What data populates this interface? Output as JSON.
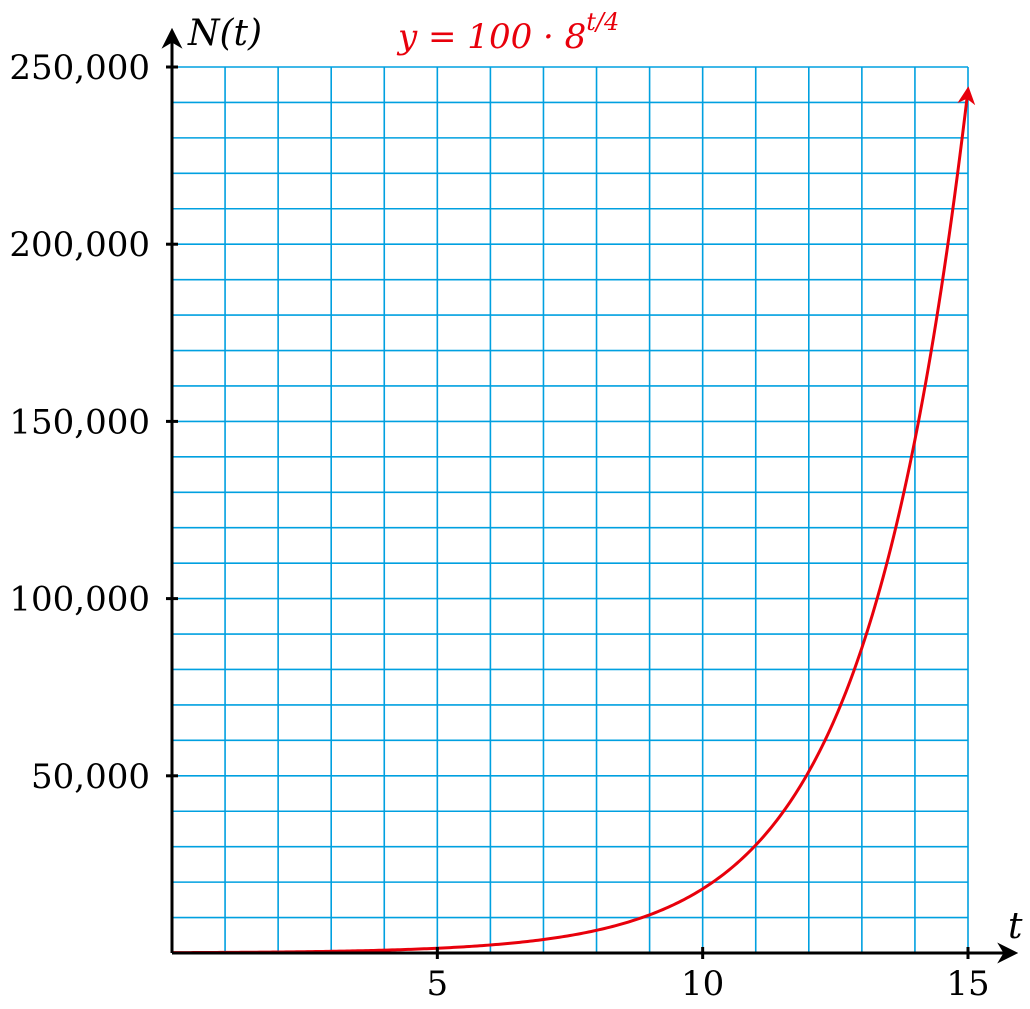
{
  "chart_data": {
    "type": "line",
    "title": "",
    "xlabel": "t",
    "ylabel": "N(t)",
    "xlim": [
      0,
      15
    ],
    "ylim": [
      0,
      250000
    ],
    "grid": true,
    "grid_x_step": 1,
    "grid_y_step": 10000,
    "x_ticks": [
      5,
      10,
      15
    ],
    "x_tick_labels": [
      "5",
      "10",
      "15"
    ],
    "y_ticks": [
      50000,
      100000,
      150000,
      200000,
      250000
    ],
    "y_tick_labels": [
      "50,000",
      "100,000",
      "150,000",
      "200,000",
      "250,000"
    ],
    "series": [
      {
        "name": "y = 100 · 8^{t/4}",
        "label_parts": {
          "base": "y = 100 · 8",
          "exponent": "t/4"
        },
        "formula": {
          "a": 100,
          "b": 8,
          "k": 4
        },
        "x": [
          0,
          1,
          2,
          3,
          4,
          5,
          6,
          7,
          8,
          9,
          10,
          11,
          12,
          13,
          14,
          15
        ],
        "values": [
          100,
          168,
          283,
          476,
          800,
          1345,
          2263,
          3805,
          6400,
          10763,
          18102,
          30444,
          51200,
          86108,
          144815,
          243549
        ],
        "color": "#e8000b"
      }
    ],
    "colors": {
      "grid": "#00a0e0",
      "axis": "#000000",
      "curve": "#e8000b"
    }
  }
}
